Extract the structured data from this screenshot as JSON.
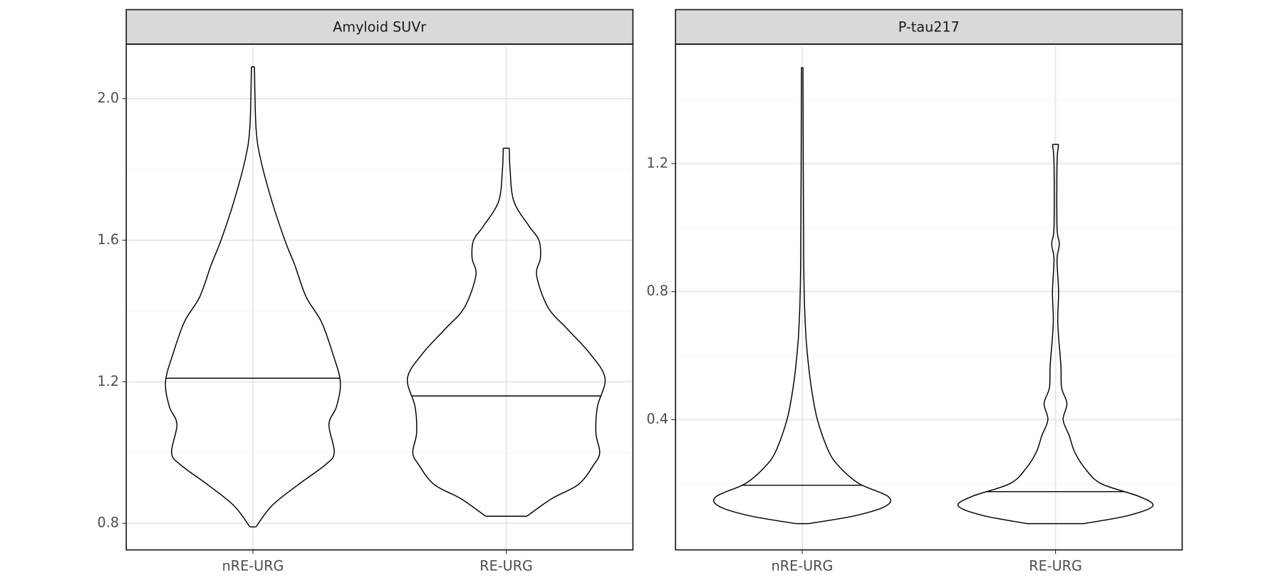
{
  "chart_data": [
    {
      "type": "violin",
      "title": "Amyloid SUVr",
      "categories": [
        "nRE-URG",
        "RE-URG"
      ],
      "ylim": [
        0.725,
        2.154
      ],
      "yticks": [
        {
          "value": 0.8,
          "label": "0.8"
        },
        1.2,
        1.6,
        {
          "value": 2.0,
          "label": "2.0"
        }
      ],
      "minor_yticks": [
        1.0,
        1.4,
        1.8
      ],
      "grid": true,
      "color": "#000000",
      "groups": [
        {
          "y": [
            0.79,
            0.85,
            0.91,
            0.965,
            1.0,
            1.08,
            1.13,
            1.2,
            1.28,
            1.37,
            1.44,
            1.53,
            1.6,
            1.71,
            1.83,
            1.92,
            2.09
          ],
          "density": [
            4,
            25,
            60,
            95,
            107,
            100,
            110,
            115,
            105,
            90,
            70,
            55,
            42,
            25,
            10,
            4,
            2
          ],
          "median": 1.21
        },
        {
          "y": [
            0.82,
            0.87,
            0.91,
            0.965,
            1.0,
            1.055,
            1.13,
            1.21,
            1.28,
            1.35,
            1.41,
            1.5,
            1.55,
            1.6,
            1.64,
            1.71,
            1.8,
            1.86
          ],
          "density": [
            27,
            60,
            95,
            115,
            123,
            118,
            120,
            130,
            110,
            80,
            55,
            40,
            45,
            43,
            30,
            10,
            5,
            4
          ],
          "median": 1.16
        }
      ]
    },
    {
      "type": "violin",
      "title": "P-tau217",
      "categories": [
        "nRE-URG",
        "RE-URG"
      ],
      "ylim": [
        -0.007,
        1.573
      ],
      "yticks": [
        0.4,
        0.8,
        1.2
      ],
      "minor_yticks": [
        0.2,
        0.6,
        1.0,
        1.4
      ],
      "grid": true,
      "color": "#000000",
      "groups": [
        {
          "y": [
            0.075,
            0.1,
            0.13,
            0.16,
            0.2,
            0.25,
            0.3,
            0.4,
            0.5,
            0.6,
            0.7,
            0.9,
            1.5
          ],
          "density": [
            8,
            70,
            110,
            113,
            75,
            50,
            35,
            20,
            12,
            7,
            4,
            2,
            1
          ],
          "median": 0.195
        },
        {
          "y": [
            0.075,
            0.1,
            0.13,
            0.16,
            0.2,
            0.25,
            0.3,
            0.35,
            0.4,
            0.45,
            0.5,
            0.57,
            0.7,
            0.8,
            0.9,
            0.95,
            1.0,
            1.2,
            1.26
          ],
          "density": [
            37,
            95,
            128,
            110,
            60,
            38,
            25,
            18,
            10,
            15,
            8,
            7,
            3,
            4,
            2,
            5,
            2,
            2,
            4
          ],
          "median": 0.175
        }
      ]
    }
  ]
}
